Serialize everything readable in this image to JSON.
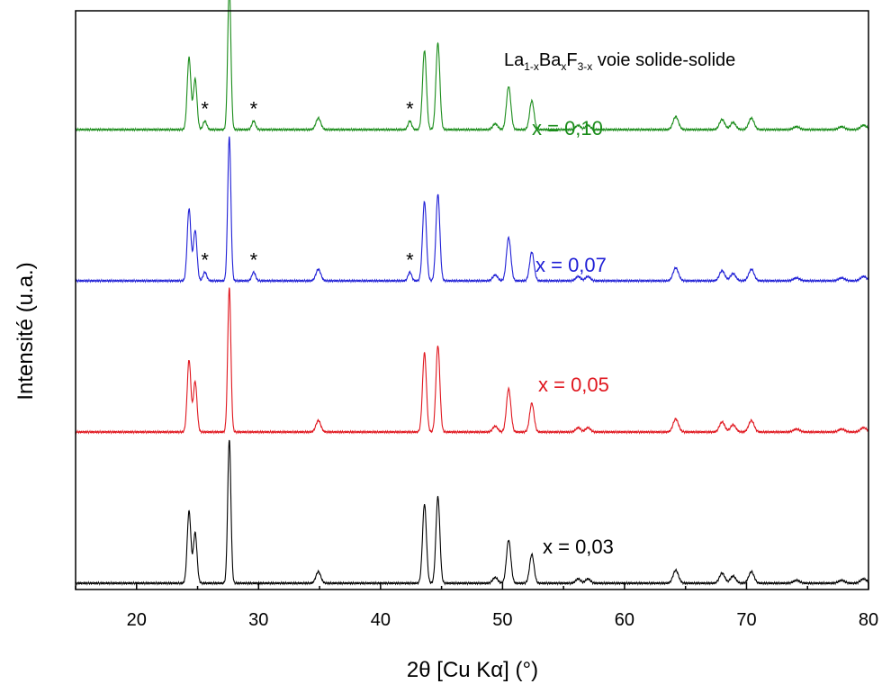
{
  "chart_data": {
    "type": "line",
    "title": "",
    "annotation_base": "La",
    "annotation_sub1": "1-x",
    "annotation_mid1": "Ba",
    "annotation_sub2": "x",
    "annotation_mid2": "F",
    "annotation_sub3": "3-x",
    "annotation_suffix": " voie solide-solide",
    "xlabel": "2θ [Cu Kα] (°)",
    "ylabel": "Intensité (u.a.)",
    "xlim": [
      15,
      80
    ],
    "ylim": [
      0,
      1
    ],
    "xticks": [
      20,
      30,
      40,
      50,
      60,
      70,
      80
    ],
    "y_ticks_shown": false,
    "grid": false,
    "legend": "none",
    "impurity_marker": "*",
    "peaks": [
      {
        "pos": 24.3,
        "rel": 0.5,
        "w": 0.15
      },
      {
        "pos": 24.8,
        "rel": 0.35,
        "w": 0.15
      },
      {
        "pos": 27.6,
        "rel": 1.0,
        "w": 0.13
      },
      {
        "pos": 34.9,
        "rel": 0.08,
        "w": 0.2
      },
      {
        "pos": 43.6,
        "rel": 0.55,
        "w": 0.16
      },
      {
        "pos": 44.7,
        "rel": 0.6,
        "w": 0.16
      },
      {
        "pos": 49.4,
        "rel": 0.04,
        "w": 0.2
      },
      {
        "pos": 50.5,
        "rel": 0.3,
        "w": 0.18
      },
      {
        "pos": 52.4,
        "rel": 0.2,
        "w": 0.18
      },
      {
        "pos": 56.2,
        "rel": 0.03,
        "w": 0.2
      },
      {
        "pos": 57.0,
        "rel": 0.03,
        "w": 0.2
      },
      {
        "pos": 64.2,
        "rel": 0.09,
        "w": 0.22
      },
      {
        "pos": 68.0,
        "rel": 0.07,
        "w": 0.22
      },
      {
        "pos": 68.9,
        "rel": 0.05,
        "w": 0.22
      },
      {
        "pos": 70.4,
        "rel": 0.08,
        "w": 0.22
      },
      {
        "pos": 74.1,
        "rel": 0.02,
        "w": 0.25
      },
      {
        "pos": 77.8,
        "rel": 0.02,
        "w": 0.25
      },
      {
        "pos": 79.6,
        "rel": 0.03,
        "w": 0.25
      }
    ],
    "series": [
      {
        "name": "x = 0,03",
        "color": "#000000",
        "offset": 0.0,
        "impurities": []
      },
      {
        "name": "x = 0,05",
        "color": "#e0161e",
        "offset": 0.24,
        "impurities": []
      },
      {
        "name": "x = 0,07",
        "color": "#1f1fd6",
        "offset": 0.48,
        "impurities": [
          25.6,
          29.6,
          42.4
        ]
      },
      {
        "name": "x = 0,10",
        "color": "#1a8c1a",
        "offset": 0.72,
        "impurities": [
          25.6,
          29.6,
          42.4
        ]
      }
    ]
  }
}
